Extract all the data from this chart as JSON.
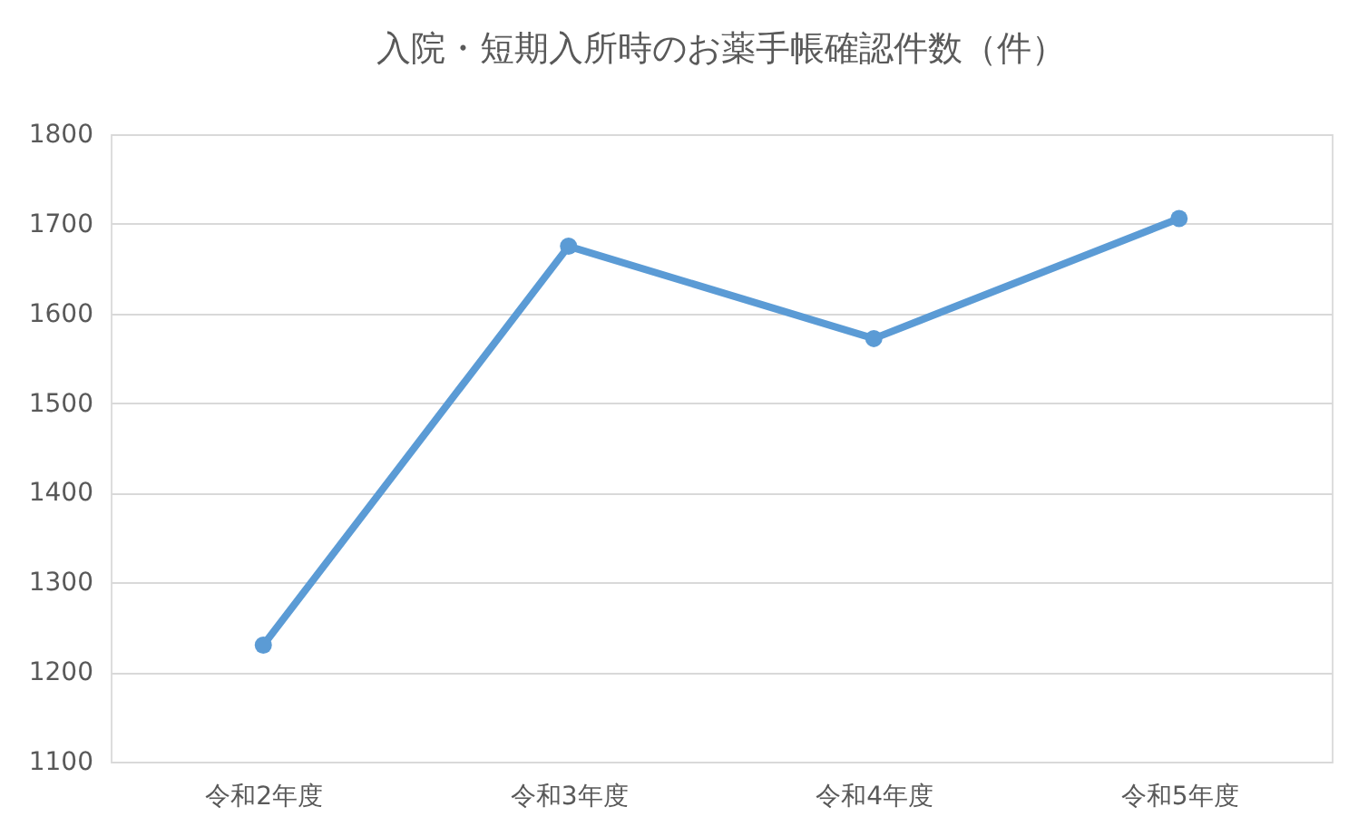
{
  "chart_data": {
    "type": "line",
    "title": "入院・短期入所時のお薬手帳確認件数（件）",
    "categories": [
      "令和2年度",
      "令和3年度",
      "令和4年度",
      "令和5年度"
    ],
    "series": [
      {
        "color": "#5b9bd5",
        "values": [
          1230,
          1675,
          1572,
          1706
        ]
      }
    ],
    "ylim": [
      1100,
      1800
    ],
    "yticks": [
      1100,
      1200,
      1300,
      1400,
      1500,
      1600,
      1700,
      1800
    ],
    "grid": "y",
    "marker": "circle",
    "line_style": "solid"
  }
}
